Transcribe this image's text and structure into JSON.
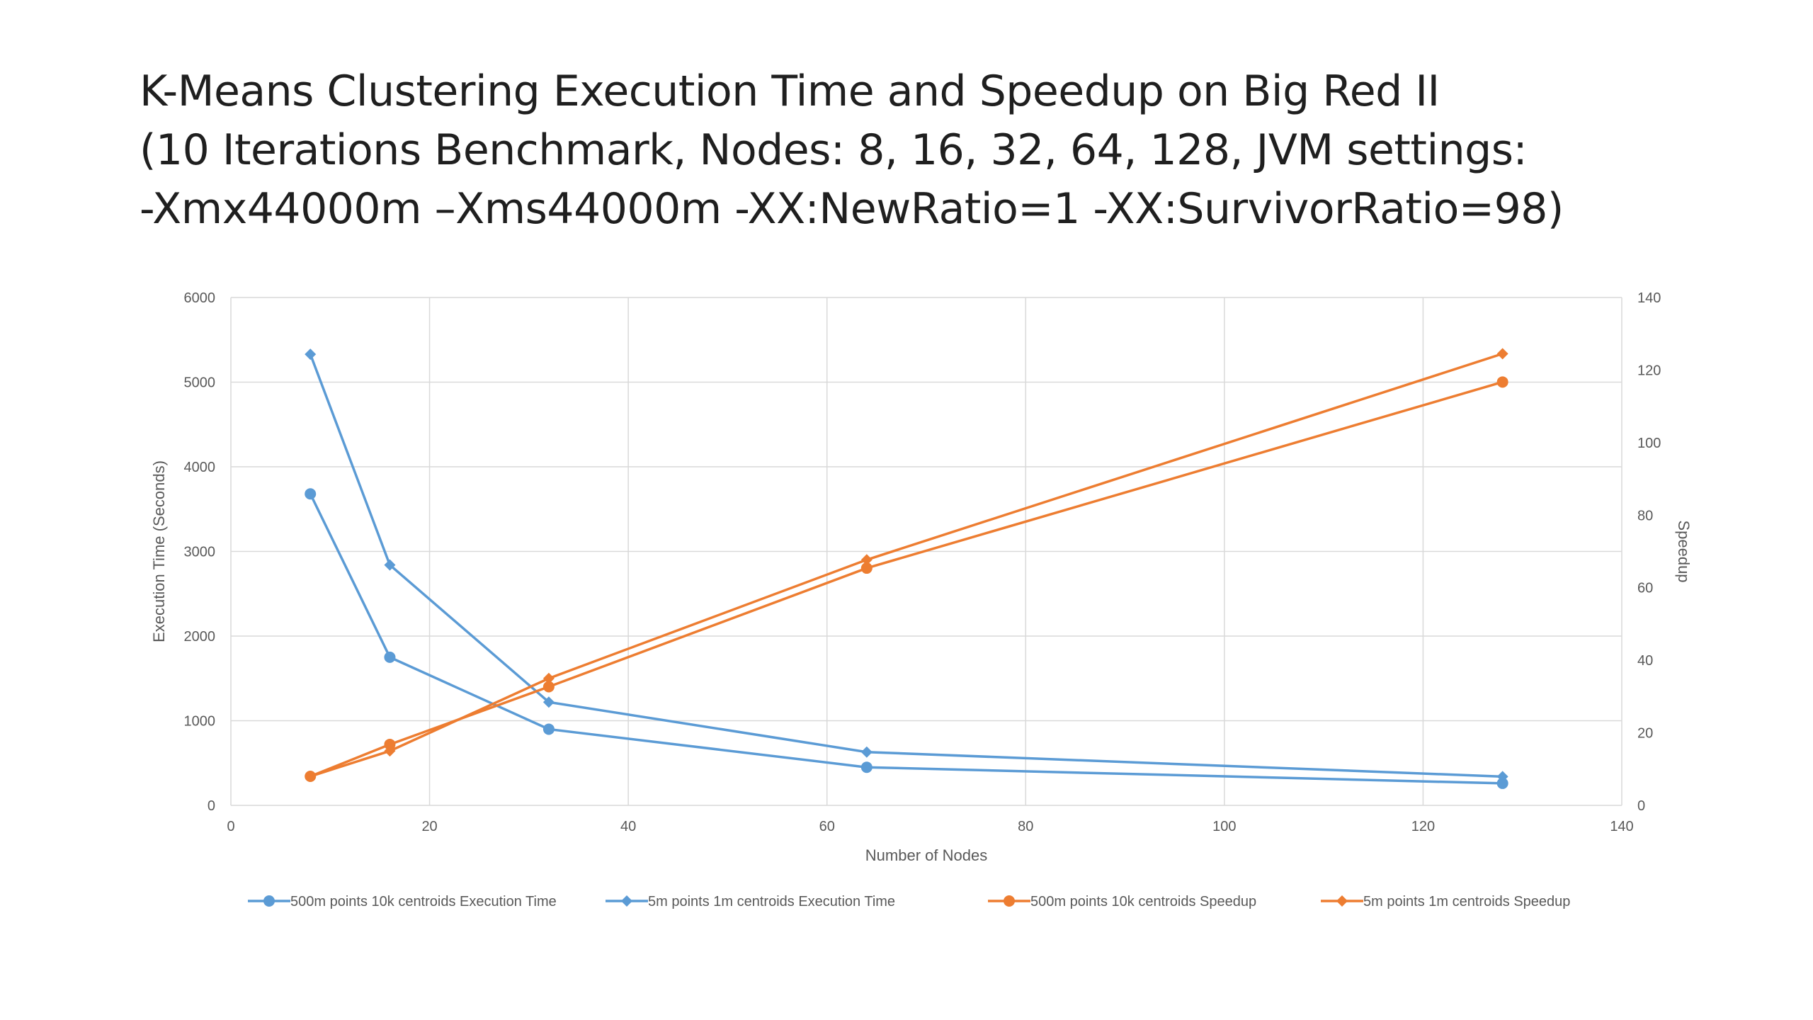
{
  "title": {
    "line1": "K-Means Clustering Execution Time and Speedup on Big Red II",
    "line2": "(10 Iterations Benchmark, Nodes: 8, 16, 32, 64, 128, JVM settings:",
    "line3": "-Xmx44000m –Xms44000m -XX:NewRatio=1 -XX:SurvivorRatio=98)"
  },
  "chart_data": {
    "type": "line",
    "xlabel": "Number of Nodes",
    "ylabel": "Execution Time (Seconds)",
    "y2label": "Speedup",
    "xlim": [
      0,
      140
    ],
    "ylim": [
      0,
      6000
    ],
    "y2lim": [
      0,
      140
    ],
    "xticks": [
      "0",
      "20",
      "40",
      "60",
      "80",
      "100",
      "120",
      "140"
    ],
    "yticks": [
      "0",
      "1000",
      "2000",
      "3000",
      "4000",
      "5000",
      "6000"
    ],
    "y2ticks": [
      "0",
      "20",
      "40",
      "60",
      "80",
      "100",
      "120",
      "140"
    ],
    "grid": true,
    "legend_position": "bottom",
    "x": [
      8,
      16,
      32,
      64,
      128
    ],
    "series": [
      {
        "name": "500m points 10k centroids Execution Time",
        "axis": "left",
        "marker": "circle",
        "color": "#5B9BD5",
        "values": [
          3680,
          1750,
          900,
          450,
          260
        ]
      },
      {
        "name": "5m points 1m centroids Execution Time",
        "axis": "left",
        "marker": "diamond",
        "color": "#5B9BD5",
        "values": [
          5330,
          2840,
          1220,
          630,
          340
        ]
      },
      {
        "name": "500m points 10k centroids Speedup",
        "axis": "right",
        "marker": "circle",
        "color": "#ED7D31",
        "values": [
          8,
          16.8,
          32.7,
          65.4,
          116.7
        ]
      },
      {
        "name": "5m points 1m centroids Speedup",
        "axis": "right",
        "marker": "diamond",
        "color": "#ED7D31",
        "values": [
          8,
          15.0,
          35.0,
          67.7,
          124.5
        ]
      }
    ]
  }
}
